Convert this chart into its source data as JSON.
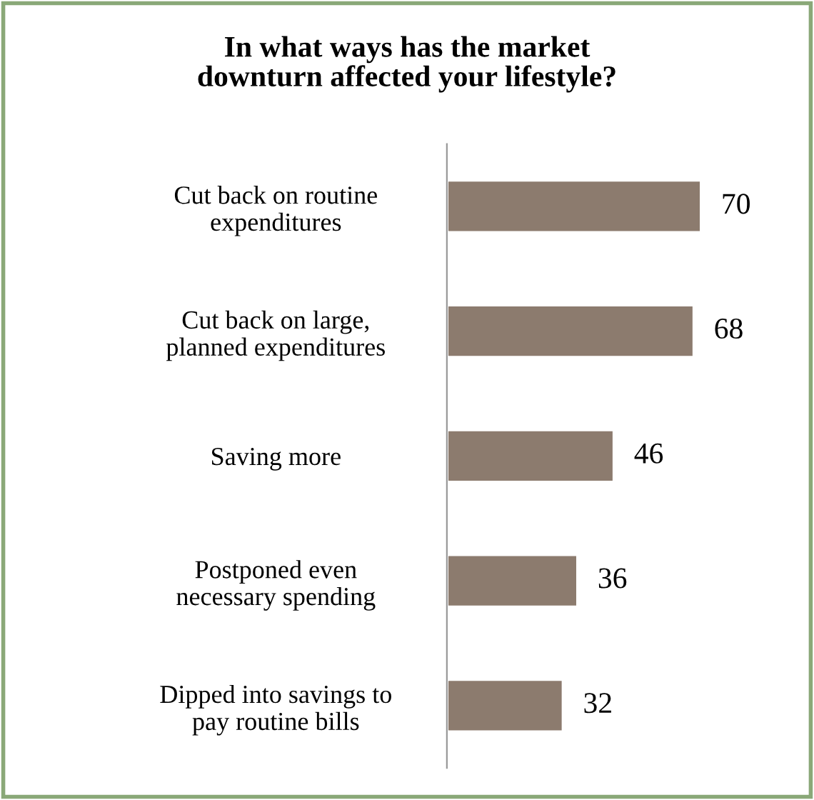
{
  "chart_data": {
    "type": "bar",
    "orientation": "horizontal",
    "title": "In what ways has the market\ndownturn affected your lifestyle?",
    "categories": [
      "Cut back on routine\nexpenditures",
      "Cut back on large,\nplanned expenditures",
      "Saving more",
      "Postponed even\nnecessary spending",
      "Dipped into savings to\npay routine bills"
    ],
    "values": [
      70,
      68,
      46,
      36,
      32
    ],
    "color": "#8c7b6e",
    "data_labels": true,
    "tick_labels": "y",
    "grid": false,
    "legend": false
  }
}
